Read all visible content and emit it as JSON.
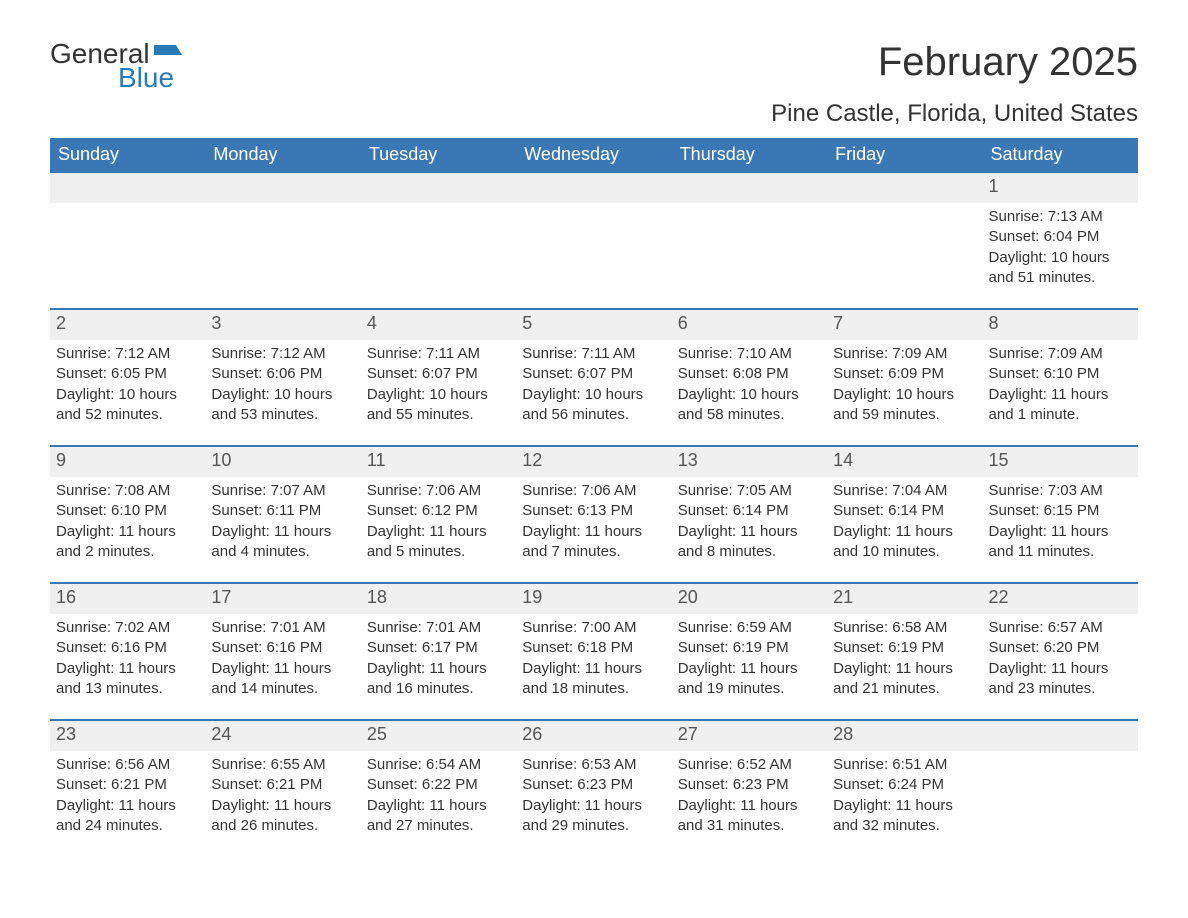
{
  "logo": {
    "word1": "General",
    "word2": "Blue"
  },
  "title": "February 2025",
  "subtitle": "Pine Castle, Florida, United States",
  "colors": {
    "header_bg": "#3a78b5",
    "header_text": "#ffffff",
    "daynum_bg": "#f0f0f0",
    "border_top": "#3a78b5",
    "text": "#333333",
    "logo_blue": "#2a7ab8"
  },
  "day_headers": [
    "Sunday",
    "Monday",
    "Tuesday",
    "Wednesday",
    "Thursday",
    "Friday",
    "Saturday"
  ],
  "weeks": [
    {
      "daynums": [
        "",
        "",
        "",
        "",
        "",
        "",
        "1"
      ],
      "cells": [
        null,
        null,
        null,
        null,
        null,
        null,
        {
          "sunrise": "Sunrise: 7:13 AM",
          "sunset": "Sunset: 6:04 PM",
          "day1": "Daylight: 10 hours",
          "day2": "and 51 minutes."
        }
      ]
    },
    {
      "daynums": [
        "2",
        "3",
        "4",
        "5",
        "6",
        "7",
        "8"
      ],
      "cells": [
        {
          "sunrise": "Sunrise: 7:12 AM",
          "sunset": "Sunset: 6:05 PM",
          "day1": "Daylight: 10 hours",
          "day2": "and 52 minutes."
        },
        {
          "sunrise": "Sunrise: 7:12 AM",
          "sunset": "Sunset: 6:06 PM",
          "day1": "Daylight: 10 hours",
          "day2": "and 53 minutes."
        },
        {
          "sunrise": "Sunrise: 7:11 AM",
          "sunset": "Sunset: 6:07 PM",
          "day1": "Daylight: 10 hours",
          "day2": "and 55 minutes."
        },
        {
          "sunrise": "Sunrise: 7:11 AM",
          "sunset": "Sunset: 6:07 PM",
          "day1": "Daylight: 10 hours",
          "day2": "and 56 minutes."
        },
        {
          "sunrise": "Sunrise: 7:10 AM",
          "sunset": "Sunset: 6:08 PM",
          "day1": "Daylight: 10 hours",
          "day2": "and 58 minutes."
        },
        {
          "sunrise": "Sunrise: 7:09 AM",
          "sunset": "Sunset: 6:09 PM",
          "day1": "Daylight: 10 hours",
          "day2": "and 59 minutes."
        },
        {
          "sunrise": "Sunrise: 7:09 AM",
          "sunset": "Sunset: 6:10 PM",
          "day1": "Daylight: 11 hours",
          "day2": "and 1 minute."
        }
      ]
    },
    {
      "daynums": [
        "9",
        "10",
        "11",
        "12",
        "13",
        "14",
        "15"
      ],
      "cells": [
        {
          "sunrise": "Sunrise: 7:08 AM",
          "sunset": "Sunset: 6:10 PM",
          "day1": "Daylight: 11 hours",
          "day2": "and 2 minutes."
        },
        {
          "sunrise": "Sunrise: 7:07 AM",
          "sunset": "Sunset: 6:11 PM",
          "day1": "Daylight: 11 hours",
          "day2": "and 4 minutes."
        },
        {
          "sunrise": "Sunrise: 7:06 AM",
          "sunset": "Sunset: 6:12 PM",
          "day1": "Daylight: 11 hours",
          "day2": "and 5 minutes."
        },
        {
          "sunrise": "Sunrise: 7:06 AM",
          "sunset": "Sunset: 6:13 PM",
          "day1": "Daylight: 11 hours",
          "day2": "and 7 minutes."
        },
        {
          "sunrise": "Sunrise: 7:05 AM",
          "sunset": "Sunset: 6:14 PM",
          "day1": "Daylight: 11 hours",
          "day2": "and 8 minutes."
        },
        {
          "sunrise": "Sunrise: 7:04 AM",
          "sunset": "Sunset: 6:14 PM",
          "day1": "Daylight: 11 hours",
          "day2": "and 10 minutes."
        },
        {
          "sunrise": "Sunrise: 7:03 AM",
          "sunset": "Sunset: 6:15 PM",
          "day1": "Daylight: 11 hours",
          "day2": "and 11 minutes."
        }
      ]
    },
    {
      "daynums": [
        "16",
        "17",
        "18",
        "19",
        "20",
        "21",
        "22"
      ],
      "cells": [
        {
          "sunrise": "Sunrise: 7:02 AM",
          "sunset": "Sunset: 6:16 PM",
          "day1": "Daylight: 11 hours",
          "day2": "and 13 minutes."
        },
        {
          "sunrise": "Sunrise: 7:01 AM",
          "sunset": "Sunset: 6:16 PM",
          "day1": "Daylight: 11 hours",
          "day2": "and 14 minutes."
        },
        {
          "sunrise": "Sunrise: 7:01 AM",
          "sunset": "Sunset: 6:17 PM",
          "day1": "Daylight: 11 hours",
          "day2": "and 16 minutes."
        },
        {
          "sunrise": "Sunrise: 7:00 AM",
          "sunset": "Sunset: 6:18 PM",
          "day1": "Daylight: 11 hours",
          "day2": "and 18 minutes."
        },
        {
          "sunrise": "Sunrise: 6:59 AM",
          "sunset": "Sunset: 6:19 PM",
          "day1": "Daylight: 11 hours",
          "day2": "and 19 minutes."
        },
        {
          "sunrise": "Sunrise: 6:58 AM",
          "sunset": "Sunset: 6:19 PM",
          "day1": "Daylight: 11 hours",
          "day2": "and 21 minutes."
        },
        {
          "sunrise": "Sunrise: 6:57 AM",
          "sunset": "Sunset: 6:20 PM",
          "day1": "Daylight: 11 hours",
          "day2": "and 23 minutes."
        }
      ]
    },
    {
      "daynums": [
        "23",
        "24",
        "25",
        "26",
        "27",
        "28",
        ""
      ],
      "cells": [
        {
          "sunrise": "Sunrise: 6:56 AM",
          "sunset": "Sunset: 6:21 PM",
          "day1": "Daylight: 11 hours",
          "day2": "and 24 minutes."
        },
        {
          "sunrise": "Sunrise: 6:55 AM",
          "sunset": "Sunset: 6:21 PM",
          "day1": "Daylight: 11 hours",
          "day2": "and 26 minutes."
        },
        {
          "sunrise": "Sunrise: 6:54 AM",
          "sunset": "Sunset: 6:22 PM",
          "day1": "Daylight: 11 hours",
          "day2": "and 27 minutes."
        },
        {
          "sunrise": "Sunrise: 6:53 AM",
          "sunset": "Sunset: 6:23 PM",
          "day1": "Daylight: 11 hours",
          "day2": "and 29 minutes."
        },
        {
          "sunrise": "Sunrise: 6:52 AM",
          "sunset": "Sunset: 6:23 PM",
          "day1": "Daylight: 11 hours",
          "day2": "and 31 minutes."
        },
        {
          "sunrise": "Sunrise: 6:51 AM",
          "sunset": "Sunset: 6:24 PM",
          "day1": "Daylight: 11 hours",
          "day2": "and 32 minutes."
        },
        null
      ]
    }
  ]
}
